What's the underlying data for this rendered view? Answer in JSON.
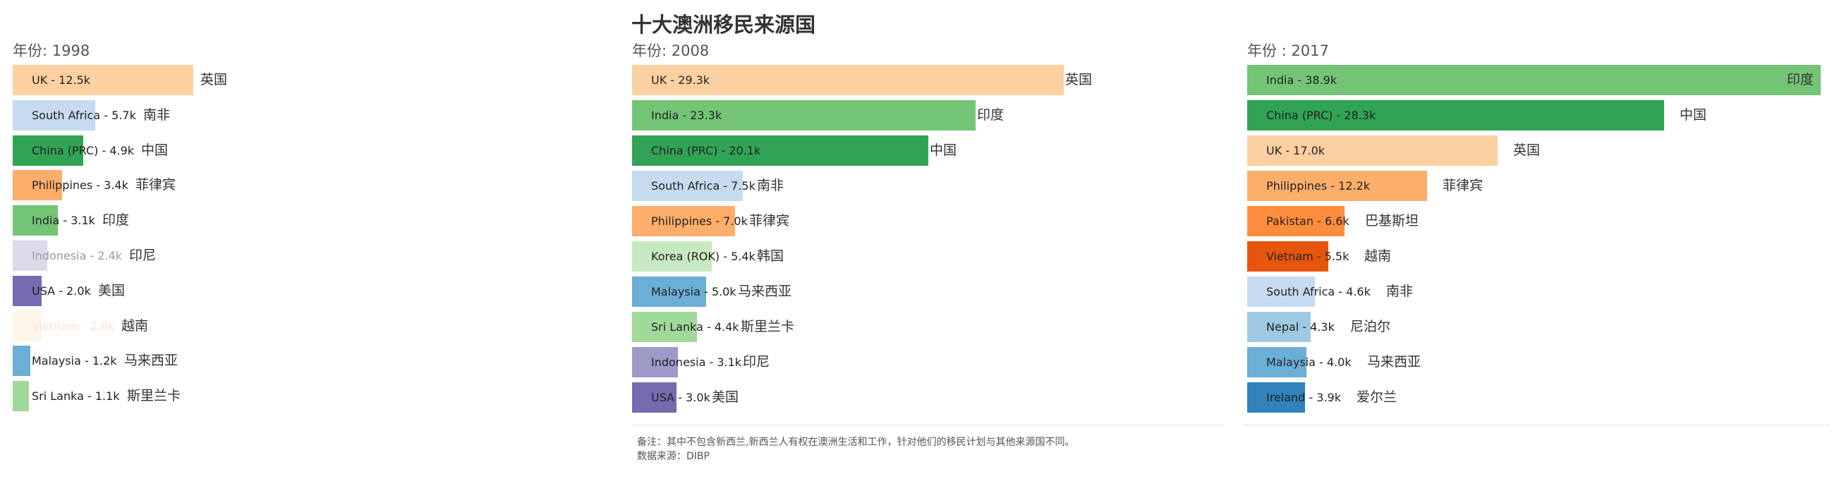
{
  "title": "十大澳洲移民来源国",
  "notes": {
    "line1": "备注：其中不包含新西兰,新西兰人有权在澳洲生活和工作，针对他们的移民计划与其他来源国不同。",
    "line2": "数据来源：DIBP"
  },
  "chart_data": [
    {
      "type": "bar",
      "orientation": "horizontal",
      "year_label": "年份: 1998",
      "categories": [
        "UK",
        "South Africa",
        "China (PRC)",
        "Philippines",
        "India",
        "Indonesia",
        "USA",
        "Vietnam",
        "Malaysia",
        "Sri Lanka"
      ],
      "values": [
        12.5,
        5.7,
        4.9,
        3.4,
        3.1,
        2.4,
        2.0,
        2.0,
        1.2,
        1.1
      ],
      "unit": "k",
      "bar_labels": [
        "UK - 12.5k",
        "South Africa - 5.7k",
        "China (PRC) - 4.9k",
        "Philippines - 3.4k",
        "India - 3.1k",
        "Indonesia - 2.4k",
        "USA - 2.0k",
        "Vietnam - 2.0k",
        "Malaysia - 1.2k",
        "Sri Lanka - 1.1k"
      ],
      "chinese_labels": [
        "英国",
        "南非",
        "中国",
        "菲律宾",
        "印度",
        "印尼",
        "美国",
        "越南",
        "马来西亚",
        "斯里兰卡"
      ],
      "colors": [
        "#fdd0a2",
        "#c6dbef",
        "#31a354",
        "#fdae6b",
        "#74c476",
        "#dadaeb",
        "#756bb1",
        "#fff5eb",
        "#6baed6",
        "#a1d99b"
      ]
    },
    {
      "type": "bar",
      "orientation": "horizontal",
      "year_label": "年份: 2008",
      "categories": [
        "UK",
        "India",
        "China (PRC)",
        "South Africa",
        "Philippines",
        "Korea (ROK)",
        "Malaysia",
        "Sri Lanka",
        "Indonesia",
        "USA"
      ],
      "values": [
        29.3,
        23.3,
        20.1,
        7.5,
        7.0,
        5.4,
        5.0,
        4.4,
        3.1,
        3.0
      ],
      "unit": "k",
      "bar_labels": [
        "UK - 29.3k",
        "India - 23.3k",
        "China (PRC) - 20.1k",
        "South Africa - 7.5k",
        "Philippines - 7.0k",
        "Korea (ROK) - 5.4k",
        "Malaysia - 5.0k",
        "Sri Lanka - 4.4k",
        "Indonesia - 3.1k",
        "USA - 3.0k"
      ],
      "chinese_labels": [
        "英国",
        "印度",
        "中国",
        "南非",
        "菲律宾",
        "韩国",
        "马来西亚",
        "斯里兰卡",
        "印尼",
        "美国"
      ],
      "colors": [
        "#fdd0a2",
        "#74c476",
        "#31a354",
        "#c6dbef",
        "#fdae6b",
        "#c7e9c0",
        "#6baed6",
        "#a1d99b",
        "#9e9ac8",
        "#756bb1"
      ]
    },
    {
      "type": "bar",
      "orientation": "horizontal",
      "year_label": "年份 : 2017",
      "categories": [
        "India",
        "China (PRC)",
        "UK",
        "Philippines",
        "Pakistan",
        "Vietnam",
        "South Africa",
        "Nepal",
        "Malaysia",
        "Ireland"
      ],
      "values": [
        38.9,
        28.3,
        17.0,
        12.2,
        6.6,
        5.5,
        4.6,
        4.3,
        4.0,
        3.9
      ],
      "unit": "k",
      "bar_labels": [
        "India - 38.9k",
        "China (PRC) - 28.3k",
        "UK - 17.0k",
        "Philippines - 12.2k",
        "Pakistan - 6.6k",
        "Vietnam - 5.5k",
        "South Africa - 4.6k",
        "Nepal - 4.3k",
        "Malaysia - 4.0k",
        "Ireland - 3.9k"
      ],
      "chinese_labels": [
        "印度",
        "中国",
        "英国",
        "菲律宾",
        "巴基斯坦",
        "越南",
        "南非",
        "尼泊尔",
        "马来西亚",
        "爱尔兰"
      ],
      "colors": [
        "#74c476",
        "#31a354",
        "#fdd0a2",
        "#fdae6b",
        "#fd8d3c",
        "#e6550d",
        "#c6dbef",
        "#9ecae1",
        "#6baed6",
        "#3182bd"
      ]
    }
  ]
}
